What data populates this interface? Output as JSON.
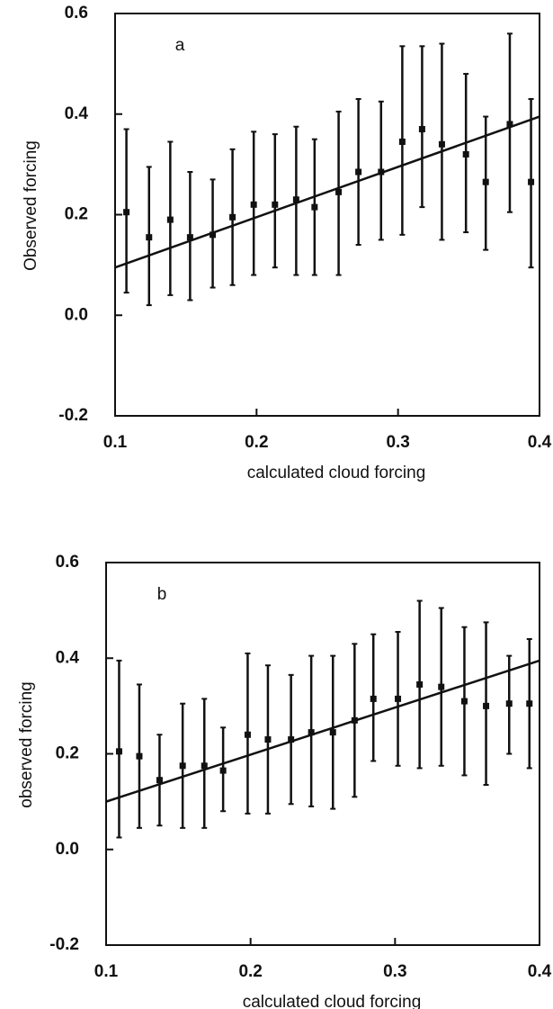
{
  "chart_data": [
    {
      "type": "scatter",
      "annotation": "a",
      "x_label": "calculated cloud forcing",
      "y_label": "Observed forcing",
      "xlim": [
        0.1,
        0.4
      ],
      "xticks": [
        0.1,
        0.2,
        0.3,
        0.4
      ],
      "ylim": [
        -0.2,
        0.6
      ],
      "yticks": [
        -0.2,
        {
          "value": 0,
          "label": "0.0"
        },
        0.2,
        0.4,
        0.6
      ],
      "series": [
        {
          "color": "#111111",
          "x": [
            0.108,
            0.124,
            0.139,
            0.153,
            0.169,
            0.183,
            0.198,
            0.213,
            0.228,
            0.241,
            0.258,
            0.272,
            0.288,
            0.303,
            0.317,
            0.331,
            0.348,
            0.362,
            0.379,
            0.394
          ],
          "values": [
            0.205,
            0.155,
            0.19,
            0.155,
            0.16,
            0.195,
            0.22,
            0.22,
            0.23,
            0.215,
            0.245,
            0.285,
            0.285,
            0.345,
            0.37,
            0.34,
            0.32,
            0.265,
            0.38,
            0.265
          ],
          "lower": [
            0.045,
            0.02,
            0.04,
            0.03,
            0.055,
            0.06,
            0.08,
            0.095,
            0.08,
            0.08,
            0.08,
            0.14,
            0.15,
            0.16,
            0.215,
            0.15,
            0.165,
            0.13,
            0.205,
            0.095
          ],
          "upper": [
            0.37,
            0.295,
            0.345,
            0.285,
            0.27,
            0.33,
            0.365,
            0.36,
            0.375,
            0.35,
            0.405,
            0.43,
            0.425,
            0.535,
            0.535,
            0.54,
            0.48,
            0.395,
            0.56,
            0.43
          ]
        }
      ],
      "fit": {
        "x": [
          0.1,
          0.4
        ],
        "y": [
          0.095,
          0.395
        ]
      }
    },
    {
      "type": "scatter",
      "annotation": "b",
      "x_label": "calculated cloud forcing",
      "y_label": "observed forcing",
      "xlim": [
        0.1,
        0.4
      ],
      "xticks": [
        0.1,
        0.2,
        0.3,
        0.4
      ],
      "ylim": [
        -0.2,
        0.6
      ],
      "yticks": [
        -0.2,
        {
          "value": 0,
          "label": "0.0"
        },
        0.2,
        0.4,
        0.6
      ],
      "series": [
        {
          "color": "#111111",
          "x": [
            0.109,
            0.123,
            0.137,
            0.153,
            0.168,
            0.181,
            0.198,
            0.212,
            0.228,
            0.242,
            0.257,
            0.272,
            0.285,
            0.302,
            0.317,
            0.332,
            0.348,
            0.363,
            0.379,
            0.393
          ],
          "values": [
            0.205,
            0.195,
            0.145,
            0.175,
            0.175,
            0.165,
            0.24,
            0.23,
            0.23,
            0.245,
            0.245,
            0.27,
            0.315,
            0.315,
            0.345,
            0.34,
            0.31,
            0.3,
            0.305,
            0.305
          ],
          "lower": [
            0.025,
            0.045,
            0.05,
            0.045,
            0.045,
            0.08,
            0.075,
            0.075,
            0.095,
            0.09,
            0.085,
            0.11,
            0.185,
            0.175,
            0.17,
            0.175,
            0.155,
            0.135,
            0.2,
            0.17
          ],
          "upper": [
            0.395,
            0.345,
            0.24,
            0.305,
            0.315,
            0.255,
            0.41,
            0.385,
            0.365,
            0.405,
            0.405,
            0.43,
            0.45,
            0.455,
            0.52,
            0.505,
            0.465,
            0.475,
            0.405,
            0.44
          ]
        }
      ],
      "fit": {
        "x": [
          0.1,
          0.4
        ],
        "y": [
          0.1,
          0.395
        ]
      }
    }
  ]
}
